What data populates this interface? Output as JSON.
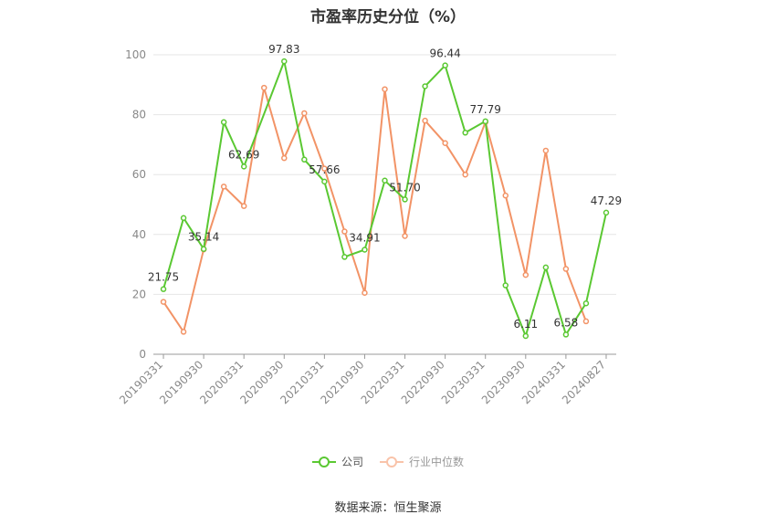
{
  "title": "市盈率历史分位（%）",
  "source": "数据来源：恒生聚源",
  "legend": {
    "company": "公司",
    "industry": "行业中位数"
  },
  "colors": {
    "company": "#5ac832",
    "industry": "#f29366",
    "grid": "#e6e6e6",
    "axis": "#999999"
  },
  "chart_data": {
    "type": "line",
    "title": "市盈率历史分位（%）",
    "ylim": [
      0,
      100
    ],
    "yticks": [
      0,
      20,
      40,
      60,
      80,
      100
    ],
    "x_tick_labels": [
      "20190331",
      "20190930",
      "20200331",
      "20200930",
      "20210331",
      "20210930",
      "20220331",
      "20220930",
      "20230331",
      "20230930",
      "20240331",
      "20240827"
    ],
    "x_tick_positions": [
      0,
      2,
      4,
      6,
      8,
      10,
      12,
      14,
      16,
      18,
      20,
      22
    ],
    "grid": true,
    "legend_position": "bottom",
    "series": [
      {
        "name": "公司",
        "values": [
          21.75,
          45.5,
          35.14,
          77.5,
          62.69,
          null,
          97.83,
          65.0,
          57.66,
          32.5,
          34.91,
          58.0,
          51.7,
          89.5,
          96.44,
          74.0,
          77.79,
          23.0,
          6.11,
          29.0,
          6.58,
          17.0,
          47.29
        ],
        "labels": {
          "0": "21.75",
          "2": "35.14",
          "4": "62.69",
          "6": "97.83",
          "8": "57.66",
          "10": "34.91",
          "12": "51.70",
          "14": "96.44",
          "16": "77.79",
          "18": "6.11",
          "20": "6.58",
          "22": "47.29"
        }
      },
      {
        "name": "行业中位数",
        "values": [
          17.5,
          7.5,
          35.0,
          56.0,
          49.5,
          89.0,
          65.5,
          80.5,
          62.0,
          41.0,
          20.5,
          88.5,
          39.5,
          78.0,
          70.5,
          60.0,
          77.5,
          53.0,
          26.5,
          68.0,
          28.5,
          11.0,
          null
        ]
      }
    ]
  }
}
